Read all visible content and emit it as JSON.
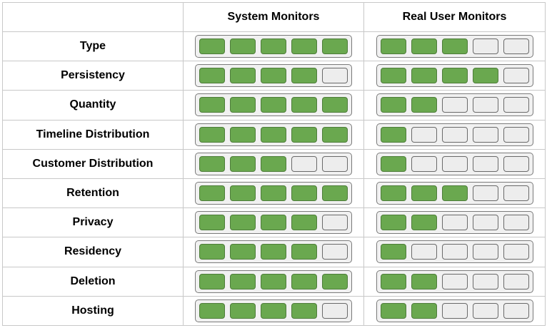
{
  "headers": [
    "",
    "System Monitors",
    "Real User Monitors"
  ],
  "segments_total": 5,
  "colors": {
    "filled": "#6aa84f",
    "empty": "#ededed"
  },
  "rows": [
    {
      "label": "Type",
      "system": 5,
      "rum": 3
    },
    {
      "label": "Persistency",
      "system": 4,
      "rum": 4
    },
    {
      "label": "Quantity",
      "system": 5,
      "rum": 2
    },
    {
      "label": "Timeline Distribution",
      "system": 5,
      "rum": 1
    },
    {
      "label": "Customer Distribution",
      "system": 3,
      "rum": 1
    },
    {
      "label": "Retention",
      "system": 5,
      "rum": 3
    },
    {
      "label": "Privacy",
      "system": 4,
      "rum": 2
    },
    {
      "label": "Residency",
      "system": 4,
      "rum": 1
    },
    {
      "label": "Deletion",
      "system": 5,
      "rum": 2
    },
    {
      "label": "Hosting",
      "system": 4,
      "rum": 2
    }
  ]
}
